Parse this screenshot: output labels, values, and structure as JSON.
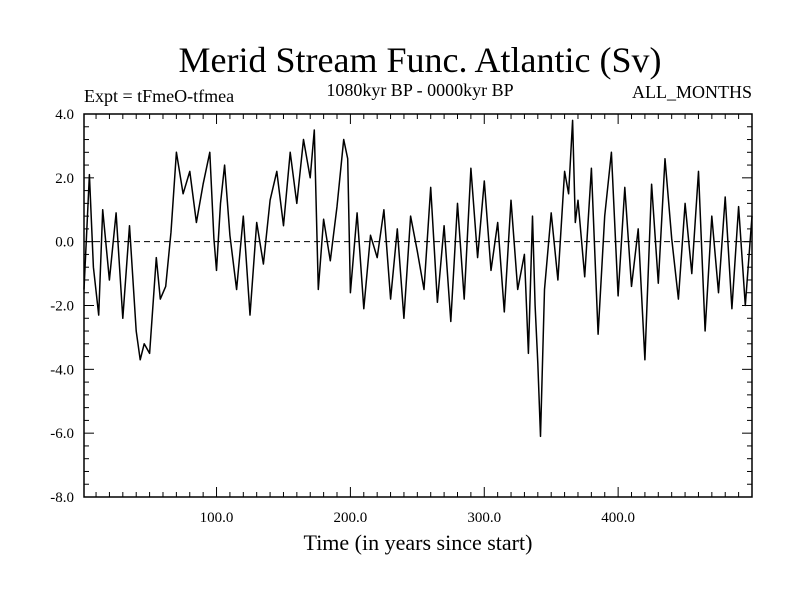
{
  "chart_data": {
    "type": "line",
    "title": "Merid Stream Func. Atlantic (Sv)",
    "subtitle_left": "Expt = tFmeO-tfmea",
    "subtitle_center": "1080kyr BP - 0000kyr BP",
    "subtitle_right": "ALL_MONTHS",
    "xlabel": "Time (in years since start)",
    "ylabel": "",
    "xlim": [
      1,
      500
    ],
    "ylim": [
      -8,
      4
    ],
    "x_ticks": [
      100,
      200,
      300,
      400
    ],
    "x_tick_labels": [
      "100.0",
      "200.0",
      "300.0",
      "400.0"
    ],
    "y_ticks": [
      4,
      2,
      0,
      -2,
      -4,
      -6,
      -8
    ],
    "y_tick_labels": [
      "4.0",
      "2.0",
      "0.0",
      "-2.0",
      "-4.0",
      "-6.0",
      "-8.0"
    ],
    "zero_line": true,
    "series": [
      {
        "name": "Merid Stream Func. Atlantic",
        "color": "#000000",
        "x": [
          1,
          5,
          8,
          12,
          15,
          20,
          25,
          30,
          35,
          40,
          43,
          46,
          50,
          55,
          58,
          62,
          66,
          70,
          75,
          80,
          85,
          90,
          95,
          98,
          100,
          103,
          106,
          110,
          115,
          120,
          125,
          130,
          135,
          140,
          145,
          150,
          155,
          160,
          165,
          170,
          173,
          176,
          180,
          185,
          190,
          195,
          198,
          200,
          205,
          210,
          215,
          220,
          225,
          230,
          235,
          240,
          245,
          250,
          255,
          260,
          265,
          270,
          275,
          280,
          285,
          290,
          295,
          300,
          305,
          310,
          315,
          320,
          325,
          330,
          333,
          336,
          338,
          340,
          342,
          345,
          350,
          355,
          360,
          363,
          366,
          368,
          370,
          375,
          380,
          385,
          390,
          395,
          400,
          405,
          410,
          415,
          420,
          425,
          430,
          435,
          440,
          445,
          450,
          455,
          460,
          465,
          470,
          475,
          480,
          485,
          490,
          495,
          500
        ],
        "values": [
          -1.5,
          2.1,
          -0.8,
          -2.3,
          1.0,
          -1.2,
          0.9,
          -2.4,
          0.5,
          -2.8,
          -3.7,
          -3.2,
          -3.5,
          -0.5,
          -1.8,
          -1.4,
          0.3,
          2.8,
          1.5,
          2.2,
          0.6,
          1.8,
          2.8,
          0.1,
          -0.9,
          1.2,
          2.4,
          0.2,
          -1.5,
          0.8,
          -2.3,
          0.6,
          -0.7,
          1.3,
          2.2,
          0.5,
          2.8,
          1.2,
          3.2,
          2.0,
          3.5,
          -1.5,
          0.7,
          -0.6,
          1.1,
          3.2,
          2.6,
          -1.6,
          0.9,
          -2.1,
          0.2,
          -0.5,
          1.0,
          -1.8,
          0.4,
          -2.4,
          0.8,
          -0.3,
          -1.5,
          1.7,
          -1.9,
          0.5,
          -2.5,
          1.2,
          -1.8,
          2.3,
          -0.5,
          1.9,
          -0.9,
          0.6,
          -2.2,
          1.3,
          -1.5,
          -0.4,
          -3.5,
          0.8,
          -2.0,
          -3.8,
          -6.1,
          -1.5,
          0.9,
          -1.2,
          2.2,
          1.5,
          3.8,
          0.6,
          1.3,
          -1.1,
          2.3,
          -2.9,
          0.8,
          2.8,
          -1.7,
          1.7,
          -1.4,
          0.4,
          -3.7,
          1.8,
          -1.3,
          2.6,
          0.1,
          -1.8,
          1.2,
          -1.0,
          2.2,
          -2.8,
          0.8,
          -1.6,
          1.4,
          -2.1,
          1.1,
          -2.0,
          0.8
        ]
      }
    ]
  }
}
